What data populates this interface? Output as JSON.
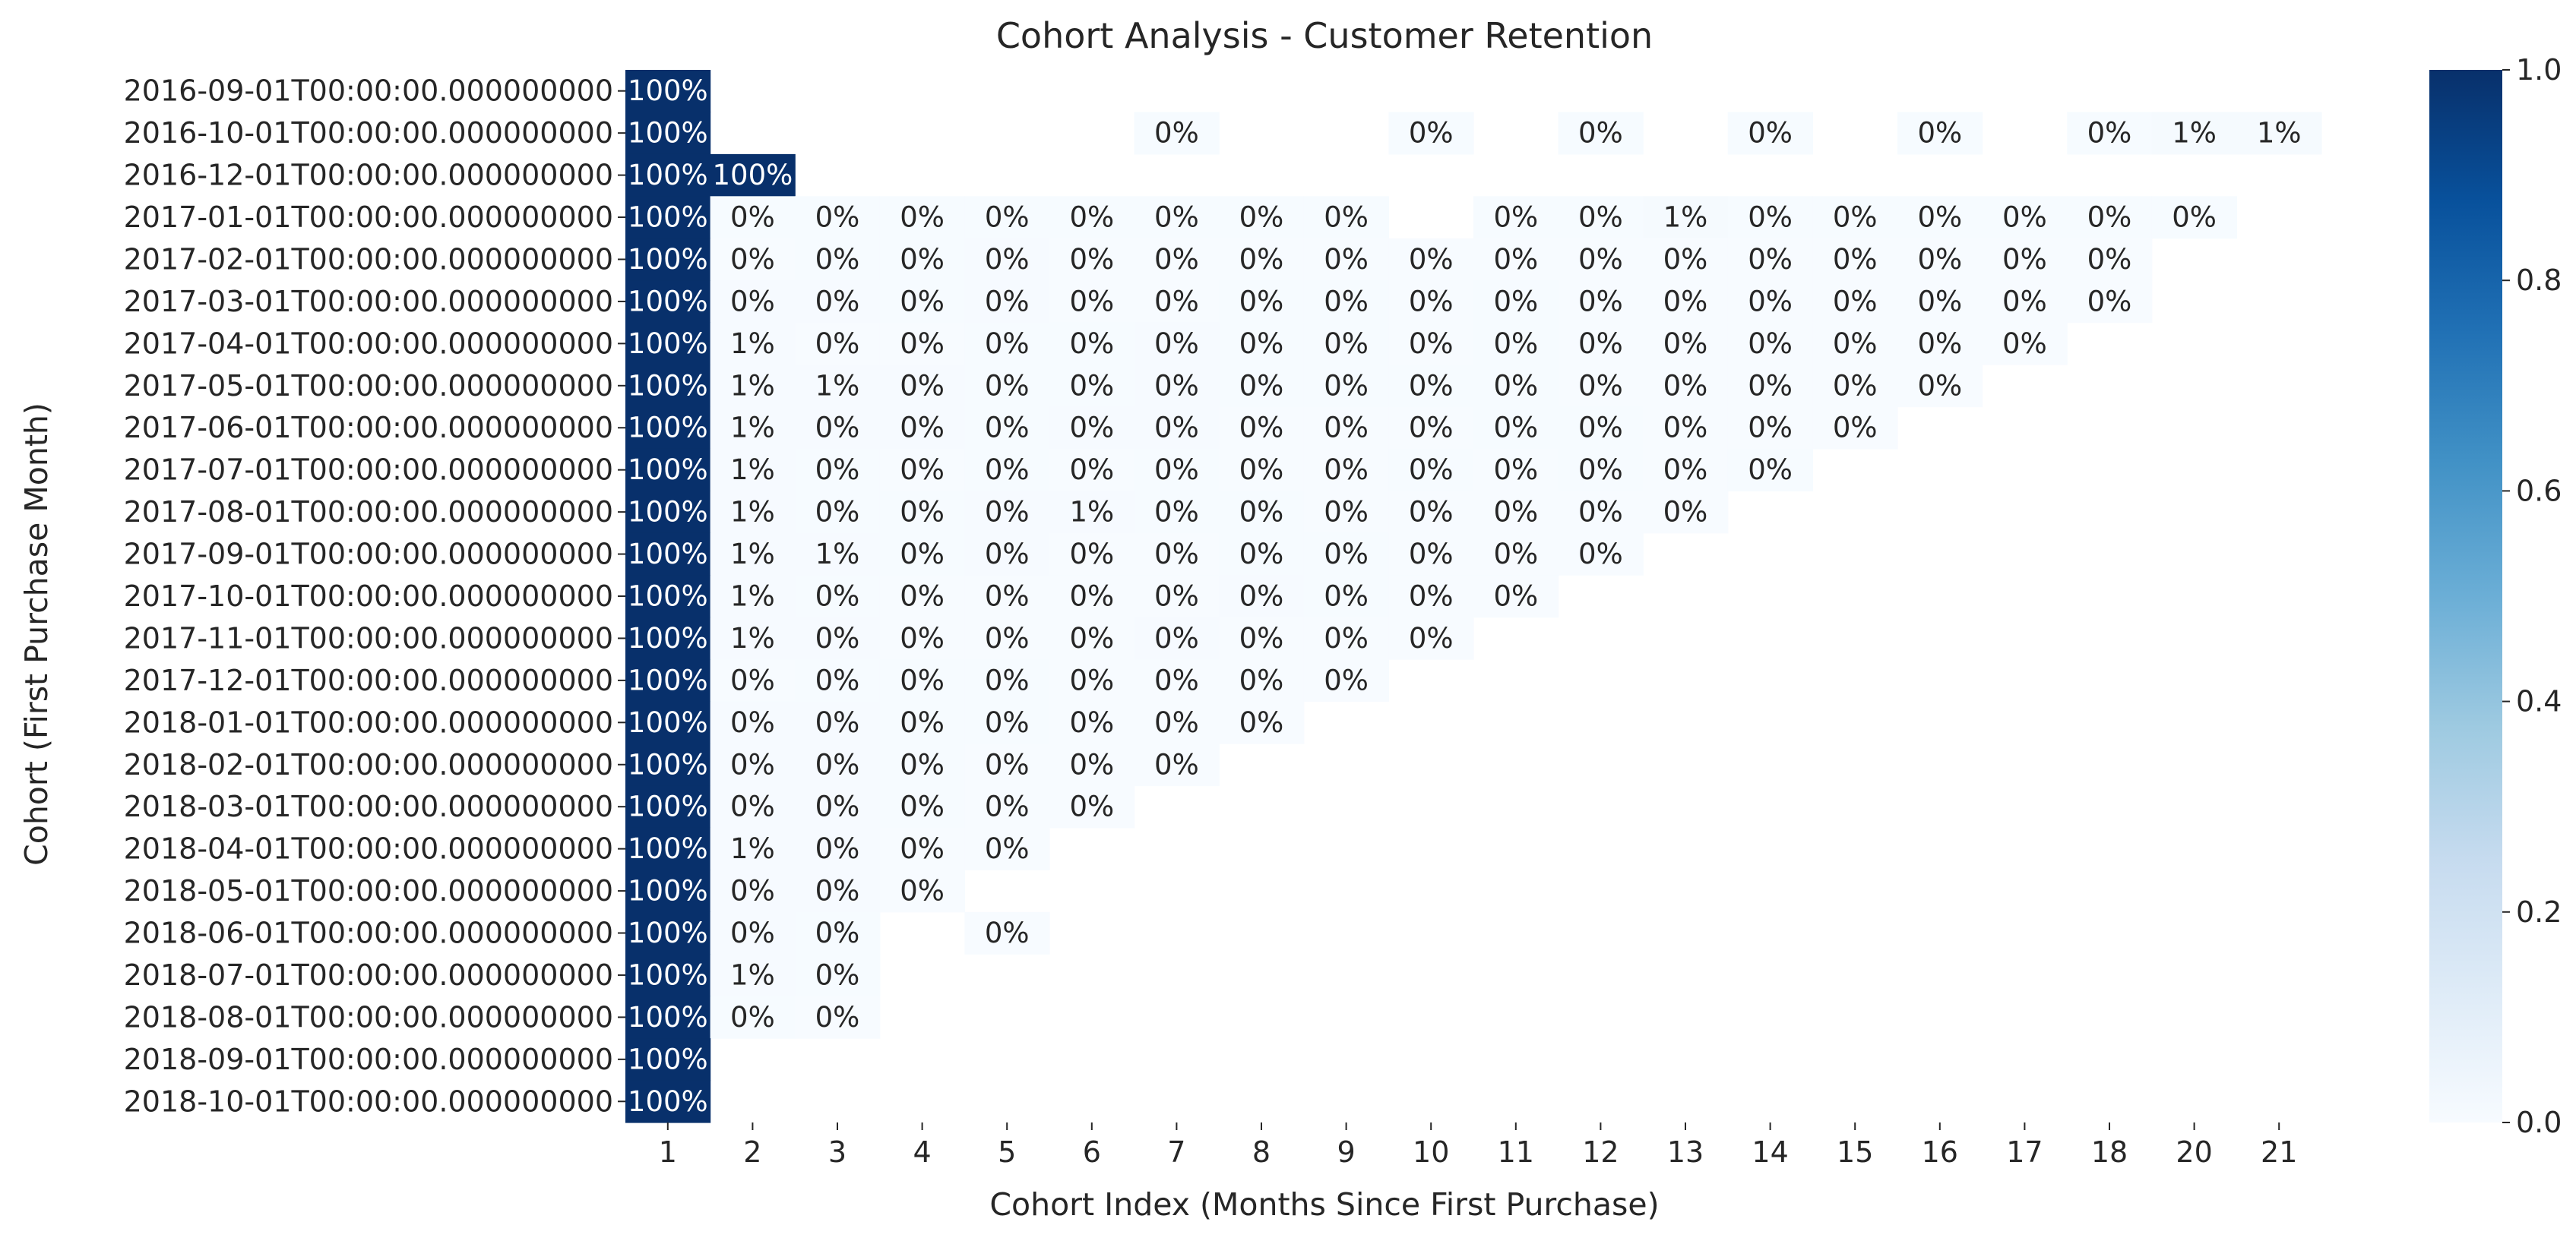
{
  "chart_data": {
    "type": "heatmap",
    "title": "Cohort Analysis - Customer Retention",
    "xlabel": "Cohort Index (Months Since First Purchase)",
    "ylabel": "Cohort (First Purchase Month)",
    "colormap": "Blues",
    "colors": {
      "low": "#f7fbff",
      "high": "#08306b"
    },
    "value_range": [
      0.0,
      1.0
    ],
    "colorbar_ticks": [
      "0.0",
      "0.2",
      "0.4",
      "0.6",
      "0.8",
      "1.0"
    ],
    "x_categories": [
      "1",
      "2",
      "3",
      "4",
      "5",
      "6",
      "7",
      "8",
      "9",
      "10",
      "11",
      "12",
      "13",
      "14",
      "15",
      "16",
      "17",
      "18",
      "20",
      "21"
    ],
    "y_categories": [
      "2016-09-01T00:00:00.000000000",
      "2016-10-01T00:00:00.000000000",
      "2016-12-01T00:00:00.000000000",
      "2017-01-01T00:00:00.000000000",
      "2017-02-01T00:00:00.000000000",
      "2017-03-01T00:00:00.000000000",
      "2017-04-01T00:00:00.000000000",
      "2017-05-01T00:00:00.000000000",
      "2017-06-01T00:00:00.000000000",
      "2017-07-01T00:00:00.000000000",
      "2017-08-01T00:00:00.000000000",
      "2017-09-01T00:00:00.000000000",
      "2017-10-01T00:00:00.000000000",
      "2017-11-01T00:00:00.000000000",
      "2017-12-01T00:00:00.000000000",
      "2018-01-01T00:00:00.000000000",
      "2018-02-01T00:00:00.000000000",
      "2018-03-01T00:00:00.000000000",
      "2018-04-01T00:00:00.000000000",
      "2018-05-01T00:00:00.000000000",
      "2018-06-01T00:00:00.000000000",
      "2018-07-01T00:00:00.000000000",
      "2018-08-01T00:00:00.000000000",
      "2018-09-01T00:00:00.000000000",
      "2018-10-01T00:00:00.000000000"
    ],
    "values": [
      [
        1.0,
        null,
        null,
        null,
        null,
        null,
        null,
        null,
        null,
        null,
        null,
        null,
        null,
        null,
        null,
        null,
        null,
        null,
        null,
        null
      ],
      [
        1.0,
        null,
        null,
        null,
        null,
        null,
        0.003,
        null,
        null,
        0.003,
        null,
        0.003,
        null,
        0.003,
        null,
        0.003,
        null,
        0.003,
        0.01,
        0.01
      ],
      [
        1.0,
        1.0,
        null,
        null,
        null,
        null,
        null,
        null,
        null,
        null,
        null,
        null,
        null,
        null,
        null,
        null,
        null,
        null,
        null,
        null
      ],
      [
        1.0,
        0.003,
        0.003,
        0.003,
        0.003,
        0.003,
        0.003,
        0.003,
        0.003,
        null,
        0.003,
        0.003,
        0.01,
        0.003,
        0.003,
        0.003,
        0.003,
        0.003,
        0.003,
        null
      ],
      [
        1.0,
        0.002,
        0.003,
        0.003,
        0.004,
        0.002,
        0.002,
        0.002,
        0.002,
        0.002,
        0.002,
        0.002,
        0.002,
        0.002,
        0.001,
        0.001,
        0.001,
        0.001,
        null,
        null
      ],
      [
        1.0,
        0.004,
        0.004,
        0.003,
        0.004,
        0.002,
        0.002,
        0.003,
        0.003,
        0.001,
        0.003,
        0.001,
        0.002,
        0.001,
        0.002,
        0.002,
        0.001,
        0.001,
        null,
        null
      ],
      [
        1.0,
        0.006,
        0.002,
        0.002,
        0.003,
        0.003,
        0.004,
        0.003,
        0.003,
        0.002,
        0.003,
        0.001,
        0.001,
        0.001,
        0.001,
        0.001,
        0.002,
        null,
        null,
        null
      ],
      [
        1.0,
        0.005,
        0.005,
        0.004,
        0.003,
        0.003,
        0.004,
        0.003,
        0.003,
        0.003,
        0.003,
        0.002,
        0.002,
        0.001,
        0.002,
        0.002,
        null,
        null,
        null,
        null
      ],
      [
        1.0,
        0.005,
        0.004,
        0.004,
        0.003,
        0.004,
        0.004,
        0.002,
        0.002,
        0.002,
        0.003,
        0.003,
        0.001,
        0.002,
        0.001,
        null,
        null,
        null,
        null,
        null
      ],
      [
        1.0,
        0.005,
        0.003,
        0.002,
        0.003,
        0.002,
        0.003,
        0.001,
        0.002,
        0.003,
        0.002,
        0.003,
        0.001,
        0.003,
        null,
        null,
        null,
        null,
        null,
        null
      ],
      [
        1.0,
        0.007,
        0.003,
        0.003,
        0.004,
        0.005,
        0.003,
        0.003,
        0.002,
        0.002,
        0.002,
        0.002,
        0.001,
        null,
        null,
        null,
        null,
        null,
        null,
        null
      ],
      [
        1.0,
        0.007,
        0.005,
        0.003,
        0.004,
        0.002,
        0.002,
        0.003,
        0.003,
        0.001,
        0.002,
        0.001,
        null,
        null,
        null,
        null,
        null,
        null,
        null,
        null
      ],
      [
        1.0,
        0.007,
        0.003,
        0.001,
        0.002,
        0.002,
        0.002,
        0.004,
        0.003,
        0.002,
        0.002,
        null,
        null,
        null,
        null,
        null,
        null,
        null,
        null,
        null
      ],
      [
        1.0,
        0.006,
        0.004,
        0.002,
        0.002,
        0.002,
        0.004,
        0.002,
        0.001,
        0.002,
        null,
        null,
        null,
        null,
        null,
        null,
        null,
        null,
        null,
        null
      ],
      [
        1.0,
        0.002,
        0.003,
        0.003,
        0.003,
        0.002,
        0.002,
        0.001,
        0.002,
        null,
        null,
        null,
        null,
        null,
        null,
        null,
        null,
        null,
        null,
        null
      ],
      [
        1.0,
        0.004,
        0.004,
        0.003,
        0.003,
        0.002,
        0.002,
        0.002,
        null,
        null,
        null,
        null,
        null,
        null,
        null,
        null,
        null,
        null,
        null,
        null
      ],
      [
        1.0,
        0.004,
        0.004,
        0.003,
        0.002,
        0.002,
        0.001,
        null,
        null,
        null,
        null,
        null,
        null,
        null,
        null,
        null,
        null,
        null,
        null,
        null
      ],
      [
        1.0,
        0.004,
        0.004,
        0.003,
        0.002,
        0.001,
        null,
        null,
        null,
        null,
        null,
        null,
        null,
        null,
        null,
        null,
        null,
        null,
        null,
        null
      ],
      [
        1.0,
        0.006,
        0.004,
        0.002,
        0.002,
        null,
        null,
        null,
        null,
        null,
        null,
        null,
        null,
        null,
        null,
        null,
        null,
        null,
        null,
        null
      ],
      [
        1.0,
        0.004,
        0.004,
        0.002,
        null,
        null,
        null,
        null,
        null,
        null,
        null,
        null,
        null,
        null,
        null,
        null,
        null,
        null,
        null,
        null
      ],
      [
        1.0,
        0.004,
        0.003,
        null,
        0.001,
        null,
        null,
        null,
        null,
        null,
        null,
        null,
        null,
        null,
        null,
        null,
        null,
        null,
        null,
        null
      ],
      [
        1.0,
        0.005,
        0.003,
        null,
        null,
        null,
        null,
        null,
        null,
        null,
        null,
        null,
        null,
        null,
        null,
        null,
        null,
        null,
        null,
        null
      ],
      [
        1.0,
        0.003,
        0.002,
        null,
        null,
        null,
        null,
        null,
        null,
        null,
        null,
        null,
        null,
        null,
        null,
        null,
        null,
        null,
        null,
        null
      ],
      [
        1.0,
        null,
        null,
        null,
        null,
        null,
        null,
        null,
        null,
        null,
        null,
        null,
        null,
        null,
        null,
        null,
        null,
        null,
        null,
        null
      ],
      [
        1.0,
        null,
        null,
        null,
        null,
        null,
        null,
        null,
        null,
        null,
        null,
        null,
        null,
        null,
        null,
        null,
        null,
        null,
        null,
        null
      ]
    ]
  }
}
